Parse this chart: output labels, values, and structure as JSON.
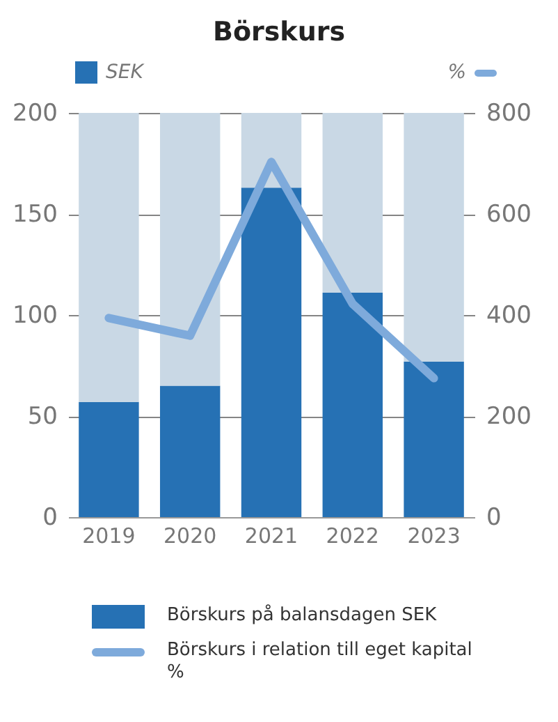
{
  "chart_data": {
    "type": "bar",
    "title": "Börskurs",
    "ylabel": "SEK",
    "y2label": "%",
    "categories": [
      "2019",
      "2020",
      "2021",
      "2022",
      "2023"
    ],
    "series": [
      {
        "name": "Börskurs på balansdagen SEK",
        "color": "#2671b4",
        "values": [
          57,
          65,
          163,
          111,
          77
        ]
      },
      {
        "color": "#c9d8e5",
        "values": [
          143,
          135,
          37,
          89,
          123
        ]
      },
      {
        "name": "Börskurs i relation till eget kapital %",
        "type": "line",
        "axis": "y2",
        "color": "#7eaadb",
        "values": [
          394,
          359,
          703,
          422,
          275
        ]
      }
    ],
    "ylim": [
      0,
      200
    ],
    "yticks": [
      0,
      50,
      100,
      150,
      200
    ],
    "y2lim": [
      0,
      800
    ],
    "y2ticks": [
      0,
      200,
      400,
      600,
      800
    ],
    "stacked": true,
    "grid": "y",
    "legend": "bottom",
    "marker": "none",
    "line_style": "solid"
  }
}
